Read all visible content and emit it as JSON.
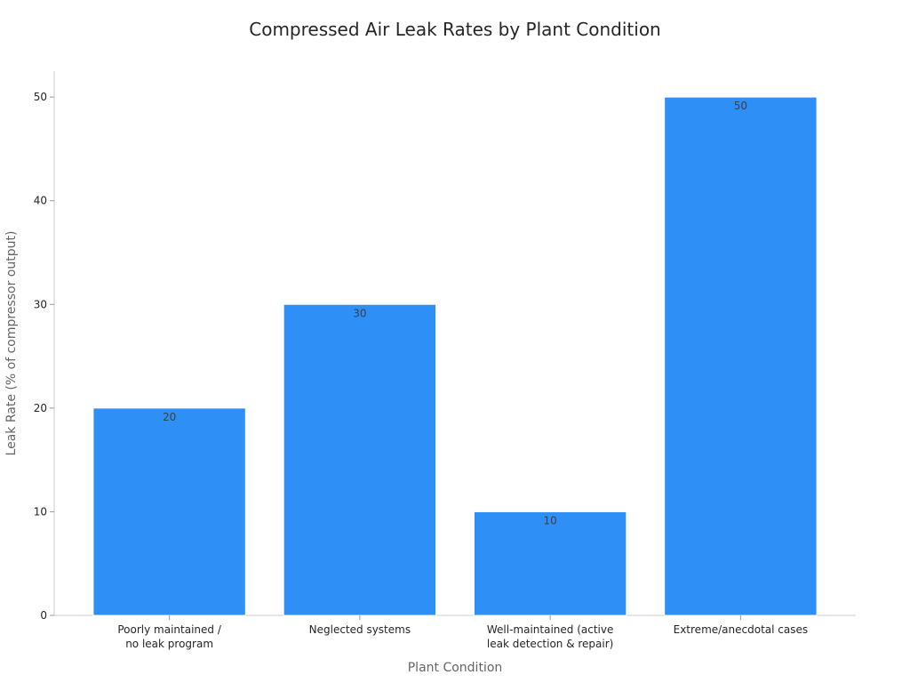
{
  "chart_data": {
    "type": "bar",
    "title": "Compressed Air Leak Rates by Plant Condition",
    "xlabel": "Plant Condition",
    "ylabel": "Leak Rate (% of compressor output)",
    "categories": [
      [
        "Poorly maintained /",
        "no leak program"
      ],
      [
        "Neglected systems"
      ],
      [
        "Well-maintained (active",
        "leak detection & repair)"
      ],
      [
        "Extreme/anecdotal cases"
      ]
    ],
    "values": [
      20,
      30,
      10,
      50
    ],
    "data_labels": [
      "20",
      "30",
      "10",
      "50"
    ],
    "ylim": [
      0,
      52.5
    ],
    "yticks": [
      0,
      10,
      20,
      30,
      40,
      50
    ],
    "grid": false,
    "colors": {
      "bar": "#2e90f7"
    }
  }
}
